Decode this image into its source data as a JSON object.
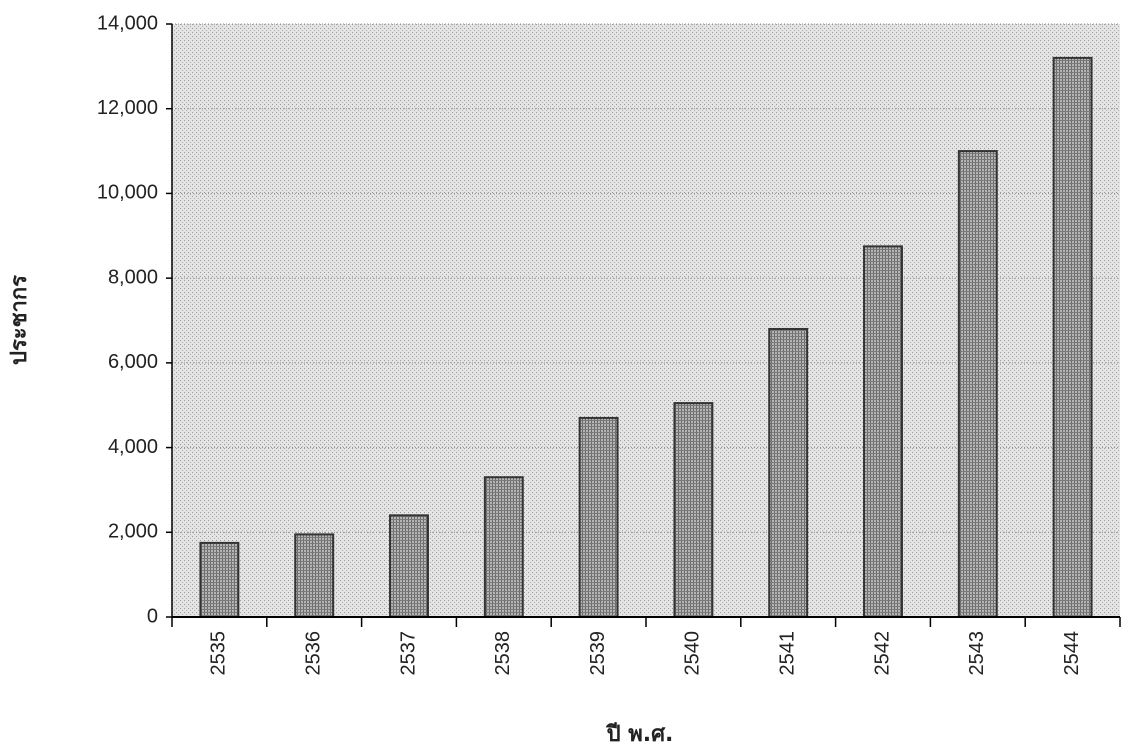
{
  "chart_data": {
    "type": "bar",
    "x_label": "ปี พ.ศ.",
    "y_label": "ประชากร",
    "categories": [
      "2535",
      "2536",
      "2537",
      "2538",
      "2539",
      "2540",
      "2541",
      "2542",
      "2543",
      "2544"
    ],
    "values": [
      1750,
      1950,
      2400,
      3300,
      4700,
      5050,
      6800,
      8750,
      11000,
      13200
    ],
    "color": "#8a8a8a",
    "ylim": [
      0,
      14000
    ],
    "yticks": [
      0,
      {
        "value": 2000,
        "label": "2,000"
      },
      {
        "value": 4000,
        "label": "4,000"
      },
      {
        "value": 6000,
        "label": "6,000"
      },
      {
        "value": 8000,
        "label": "8,000"
      },
      {
        "value": 10000,
        "label": "10,000"
      },
      {
        "value": 12000,
        "label": "12,000"
      },
      {
        "value": 14000,
        "label": "14,000"
      }
    ],
    "grid": true
  }
}
